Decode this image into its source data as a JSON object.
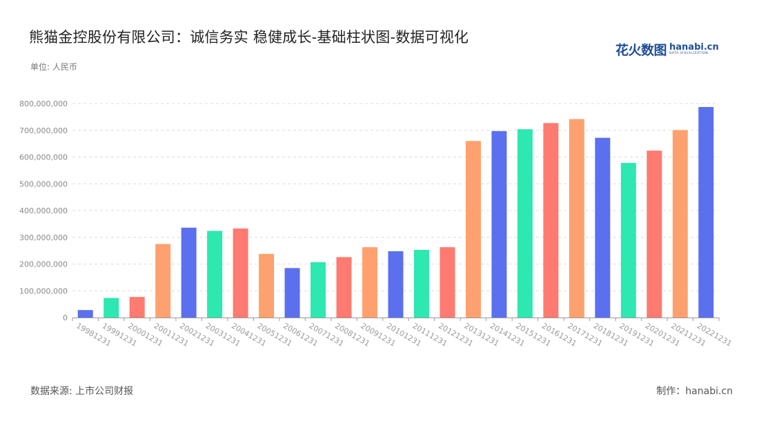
{
  "header": {
    "title": "熊猫金控股份有限公司：诚信务实 稳健成长-基础柱状图-数据可视化",
    "unit": "单位: 人民币"
  },
  "logo": {
    "cn": "花火数图",
    "en": "hanabi.cn",
    "sub": "DATA VISUALIZATION"
  },
  "footer": {
    "source": "数据来源: 上市公司财报",
    "maker": "制作：hanabi.cn"
  },
  "colors": [
    "#5b70ee",
    "#2de8b0",
    "#ff7a70",
    "#ffa16e"
  ],
  "chart_data": {
    "type": "bar",
    "categories": [
      "19981231",
      "19991231",
      "20001231",
      "20011231",
      "20021231",
      "20031231",
      "20041231",
      "20051231",
      "20061231",
      "20071231",
      "20081231",
      "20091231",
      "20101231",
      "20111231",
      "20121231",
      "20131231",
      "20141231",
      "20151231",
      "20161231",
      "20171231",
      "20181231",
      "20191231",
      "20201231",
      "20211231",
      "20221231"
    ],
    "values": [
      28000000,
      73000000,
      77000000,
      275000000,
      336000000,
      324000000,
      333000000,
      238000000,
      185000000,
      207000000,
      226000000,
      263000000,
      248000000,
      253000000,
      263000000,
      660000000,
      697000000,
      704000000,
      727000000,
      742000000,
      672000000,
      578000000,
      624000000,
      701000000,
      787000000
    ],
    "ylim": [
      0,
      800000000
    ],
    "yticks": [
      "0",
      "100,000,000",
      "200,000,000",
      "300,000,000",
      "400,000,000",
      "500,000,000",
      "600,000,000",
      "700,000,000",
      "800,000,000"
    ],
    "grid": true
  }
}
